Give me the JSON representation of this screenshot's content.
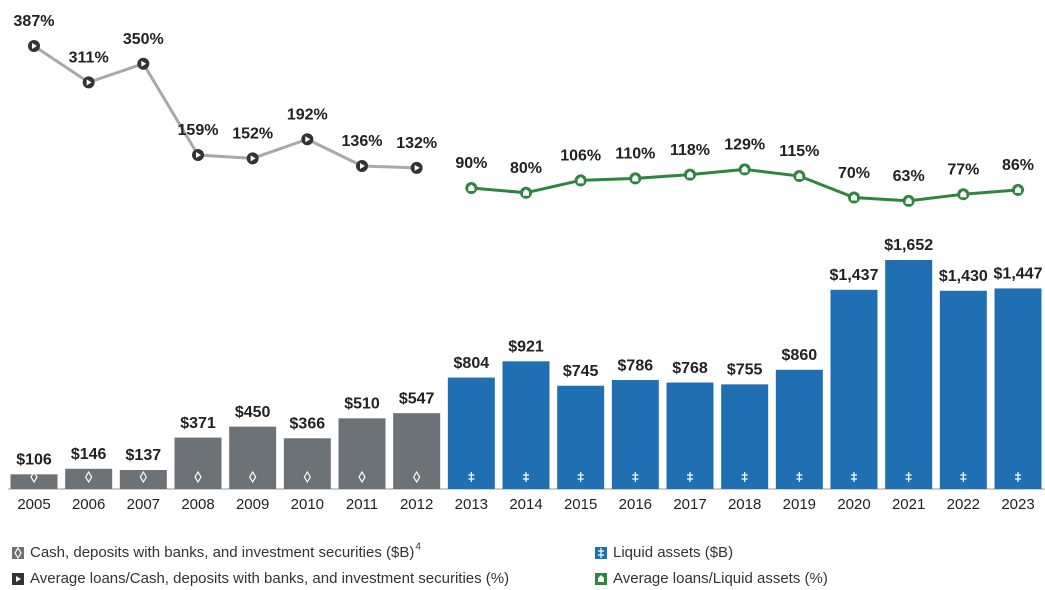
{
  "chart_data": {
    "type": "combo",
    "categories": [
      "2005",
      "2006",
      "2007",
      "2008",
      "2009",
      "2010",
      "2011",
      "2012",
      "2013",
      "2014",
      "2015",
      "2016",
      "2017",
      "2018",
      "2019",
      "2020",
      "2021",
      "2022",
      "2023"
    ],
    "series": [
      {
        "name": "Cash, deposits with banks, and investment securities ($B)",
        "legend_note": "4",
        "type": "bar",
        "color": "#6d7277",
        "values": [
          106,
          146,
          137,
          371,
          450,
          366,
          510,
          547,
          null,
          null,
          null,
          null,
          null,
          null,
          null,
          null,
          null,
          null,
          null
        ],
        "value_labels": [
          "$106",
          "$146",
          "$137",
          "$371",
          "$450",
          "$366",
          "$510",
          "$547",
          null,
          null,
          null,
          null,
          null,
          null,
          null,
          null,
          null,
          null,
          null
        ]
      },
      {
        "name": "Liquid assets ($B)",
        "type": "bar",
        "color": "#1f6fb2",
        "values": [
          null,
          null,
          null,
          null,
          null,
          null,
          null,
          null,
          804,
          921,
          745,
          786,
          768,
          755,
          860,
          1437,
          1652,
          1430,
          1447
        ],
        "value_labels": [
          null,
          null,
          null,
          null,
          null,
          null,
          null,
          null,
          "$804",
          "$921",
          "$745",
          "$786",
          "$768",
          "$755",
          "$860",
          "$1,437",
          "$1,652",
          "$1,430",
          "$1,447"
        ]
      },
      {
        "name": "Average loans/Cash, deposits with banks, and investment securities (%)",
        "type": "line",
        "color": "#a8a9ab",
        "values": [
          387,
          311,
          350,
          159,
          152,
          192,
          136,
          132,
          null,
          null,
          null,
          null,
          null,
          null,
          null,
          null,
          null,
          null,
          null
        ],
        "value_labels": [
          "387%",
          "311%",
          "350%",
          "159%",
          "152%",
          "192%",
          "136%",
          "132%",
          null,
          null,
          null,
          null,
          null,
          null,
          null,
          null,
          null,
          null,
          null
        ]
      },
      {
        "name": "Average loans/Liquid assets (%)",
        "type": "line",
        "color": "#2e8540",
        "values": [
          null,
          null,
          null,
          null,
          null,
          null,
          null,
          null,
          90,
          80,
          106,
          110,
          118,
          129,
          115,
          70,
          63,
          77,
          86
        ],
        "value_labels": [
          null,
          null,
          null,
          null,
          null,
          null,
          null,
          null,
          "90%",
          "80%",
          "106%",
          "110%",
          "118%",
          "129%",
          "115%",
          "70%",
          "63%",
          "77%",
          "86%"
        ]
      }
    ]
  }
}
